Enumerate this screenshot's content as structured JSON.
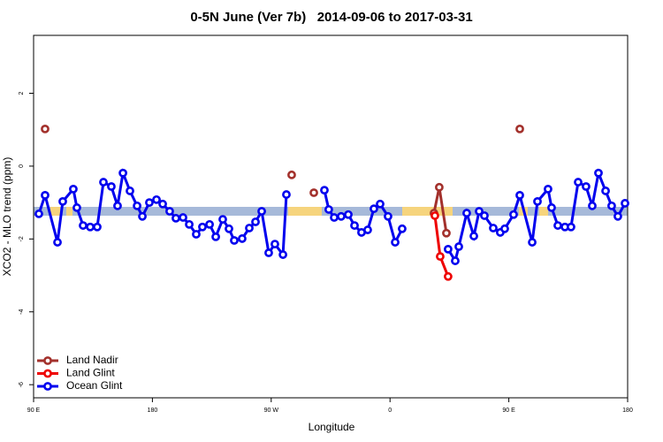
{
  "chart_data": {
    "type": "line",
    "title": "0-5N June (Ver 7b)   2014-09-06 to 2017-03-31",
    "x_label": "Longitude",
    "y_label": "XCO2 - MLO trend (ppm)",
    "xlim": [
      90,
      540
    ],
    "xticks": [
      {
        "value": 90,
        "label": "90 E"
      },
      180,
      {
        "value": 270,
        "label": "90 W"
      },
      {
        "value": 360,
        "label": "0"
      },
      {
        "value": 450,
        "label": "90 E"
      },
      {
        "value": 540,
        "label": "180"
      }
    ],
    "ylim": [
      -6.36,
      3.59
    ],
    "yticks": [
      -6,
      -4,
      -2,
      0,
      2
    ],
    "legend": "bottom-left",
    "series": [
      {
        "name": "Land Nadir",
        "color": "#a3312c",
        "x": [
          98.7,
          null,
          285.5,
          null,
          302.3,
          null,
          393.3,
          397.3,
          402.7,
          null,
          458.3
        ],
        "values": [
          1.02,
          null,
          -0.24,
          null,
          -0.73,
          null,
          -1.29,
          -0.58,
          -1.84,
          null,
          1.02
        ]
      },
      {
        "name": "Land Glint",
        "color": "#ee0000",
        "x": [
          394.0,
          398.0,
          404.0
        ],
        "values": [
          -1.36,
          -2.48,
          -3.03
        ]
      },
      {
        "name": "Ocean Glint",
        "color": "#0000ee",
        "x": [
          94.0,
          98.7,
          108.1,
          112.1,
          120.1,
          122.8,
          127.5,
          132.9,
          138.2,
          142.9,
          148.9,
          153.6,
          157.7,
          163.0,
          168.4,
          172.4,
          177.7,
          183.1,
          187.8,
          193.1,
          197.8,
          203.2,
          207.9,
          213.2,
          217.9,
          223.3,
          228.0,
          233.3,
          238.0,
          242.0,
          248.0,
          253.4,
          258.1,
          262.8,
          268.1,
          272.8,
          278.9,
          281.5,
          null,
          310.3,
          313.6,
          317.7,
          323.0,
          328.4,
          333.1,
          338.4,
          343.1,
          347.8,
          352.5,
          358.5,
          363.9,
          369.2,
          null,
          404.0,
          409.4,
          412.1,
          418.1,
          423.5,
          427.5,
          431.5,
          438.2,
          443.5,
          446.9,
          453.6,
          458.3,
          467.7,
          471.7,
          479.7,
          482.4,
          487.1,
          492.5,
          497.1,
          502.5,
          508.5,
          513.2,
          517.9,
          523.3,
          527.9,
          532.6,
          538.0
        ],
        "values": [
          -1.31,
          -0.8,
          -2.09,
          -0.97,
          -0.63,
          -1.14,
          -1.63,
          -1.67,
          -1.67,
          -0.44,
          -0.56,
          -1.09,
          -0.19,
          -0.68,
          -1.09,
          -1.38,
          -1.0,
          -0.92,
          -1.04,
          -1.24,
          -1.43,
          -1.41,
          -1.6,
          -1.87,
          -1.67,
          -1.6,
          -1.94,
          -1.46,
          -1.72,
          -2.04,
          -1.99,
          -1.7,
          -1.53,
          -1.24,
          -2.38,
          -2.14,
          -2.43,
          -0.78,
          null,
          -0.66,
          -1.19,
          -1.41,
          -1.38,
          -1.33,
          -1.63,
          -1.82,
          -1.75,
          -1.17,
          -1.04,
          -1.38,
          -2.09,
          -1.72,
          null,
          -2.28,
          -2.6,
          -2.21,
          -1.29,
          -1.92,
          -1.24,
          -1.36,
          -1.7,
          -1.82,
          -1.72,
          -1.33,
          -0.8,
          -2.09,
          -0.97,
          -0.63,
          -1.14,
          -1.63,
          -1.67,
          -1.67,
          -0.44,
          -0.56,
          -1.09,
          -0.19,
          -0.68,
          -1.09,
          -1.38,
          -1.02
        ]
      }
    ]
  }
}
